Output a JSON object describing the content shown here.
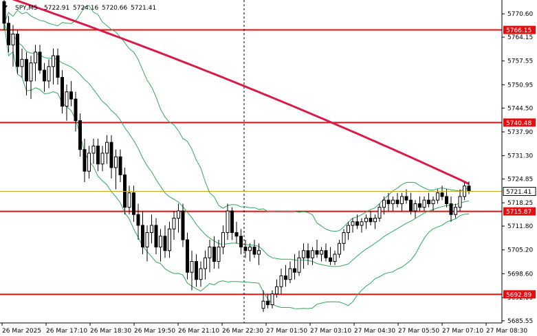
{
  "chart_data": {
    "type": "candlestick",
    "title": "SPY,M5",
    "ohlc": {
      "open": "5722.91",
      "high": "5724.16",
      "low": "5720.66",
      "close": "5721.41"
    },
    "yticks": [
      5770.6,
      5764.15,
      5757.55,
      5750.95,
      5744.5,
      5737.9,
      5731.3,
      5724.85,
      5718.25,
      5711.8,
      5705.2,
      5698.6,
      5692.0,
      5685.55
    ],
    "ytick_labels": [
      "5770.60",
      "5764.15",
      "5757.55",
      "5750.95",
      "5744.50",
      "5737.90",
      "5731.30",
      "5724.85",
      "5718.25",
      "5711.80",
      "5705.20",
      "5698.60",
      "5692.00",
      "5685.55"
    ],
    "xtick_labels": [
      "26 Mar 2025",
      "26 Mar 17:10",
      "26 Mar 18:30",
      "26 Mar 19:50",
      "26 Mar 21:10",
      "26 Mar 22:30",
      "27 Mar 01:50",
      "27 Mar 03:10",
      "27 Mar 04:30",
      "27 Mar 05:50",
      "27 Mar 07:10",
      "27 Mar 08:30"
    ],
    "price_levels": [
      {
        "value": 5766.15,
        "label": "5766.15"
      },
      {
        "value": 5740.48,
        "label": "5740.48"
      },
      {
        "value": 5715.87,
        "label": "5715.87"
      },
      {
        "value": 5692.89,
        "label": "5692.89"
      }
    ],
    "current_price": {
      "value": 5721.41,
      "label": "5721.41"
    },
    "session_break_index": 54,
    "colors": {
      "candle": "#000000",
      "level": "#e01010",
      "ma": "#d81b48",
      "bands": "#2ea85a",
      "current": "#c9a227",
      "label_bg": "#e01010"
    },
    "candles": [
      [
        5774.0,
        5775.5,
        5766.0,
        5768.0
      ],
      [
        5768.0,
        5770.0,
        5760.0,
        5762.0
      ],
      [
        5762.0,
        5767.5,
        5756.0,
        5765.0
      ],
      [
        5765.0,
        5766.0,
        5754.0,
        5756.0
      ],
      [
        5756.0,
        5761.0,
        5753.0,
        5758.0
      ],
      [
        5758.0,
        5760.0,
        5748.0,
        5752.0
      ],
      [
        5752.0,
        5759.0,
        5747.0,
        5757.0
      ],
      [
        5757.0,
        5762.0,
        5752.0,
        5760.0
      ],
      [
        5760.0,
        5762.0,
        5754.0,
        5755.0
      ],
      [
        5755.0,
        5757.0,
        5749.0,
        5752.0
      ],
      [
        5752.0,
        5758.0,
        5750.0,
        5756.0
      ],
      [
        5756.0,
        5761.0,
        5751.0,
        5759.0
      ],
      [
        5759.0,
        5761.0,
        5751.0,
        5753.0
      ],
      [
        5753.0,
        5755.0,
        5743.0,
        5745.0
      ],
      [
        5745.0,
        5751.0,
        5741.0,
        5749.0
      ],
      [
        5749.0,
        5752.0,
        5745.0,
        5747.0
      ],
      [
        5747.0,
        5749.0,
        5738.0,
        5741.0
      ],
      [
        5741.0,
        5743.0,
        5731.0,
        5733.0
      ],
      [
        5733.0,
        5736.0,
        5724.0,
        5727.0
      ],
      [
        5727.0,
        5734.0,
        5725.0,
        5732.0
      ],
      [
        5732.0,
        5736.0,
        5729.0,
        5734.0
      ],
      [
        5734.0,
        5736.0,
        5727.0,
        5729.0
      ],
      [
        5729.0,
        5734.0,
        5727.0,
        5732.0
      ],
      [
        5732.0,
        5737.0,
        5729.0,
        5735.0
      ],
      [
        5735.0,
        5737.0,
        5725.0,
        5728.0
      ],
      [
        5728.0,
        5733.0,
        5722.0,
        5731.0
      ],
      [
        5731.0,
        5733.0,
        5724.0,
        5726.0
      ],
      [
        5726.0,
        5728.0,
        5715.0,
        5717.0
      ],
      [
        5717.0,
        5723.0,
        5715.0,
        5721.0
      ],
      [
        5721.0,
        5723.0,
        5713.0,
        5715.0
      ],
      [
        5715.0,
        5718.0,
        5708.0,
        5712.0
      ],
      [
        5712.0,
        5716.0,
        5704.0,
        5706.0
      ],
      [
        5706.0,
        5712.0,
        5702.0,
        5710.0
      ],
      [
        5710.0,
        5715.0,
        5707.0,
        5712.0
      ],
      [
        5712.0,
        5714.0,
        5704.0,
        5706.0
      ],
      [
        5706.0,
        5711.0,
        5702.0,
        5709.0
      ],
      [
        5709.0,
        5712.0,
        5703.0,
        5705.0
      ],
      [
        5705.0,
        5713.0,
        5703.0,
        5711.0
      ],
      [
        5711.0,
        5716.0,
        5708.0,
        5714.0
      ],
      [
        5714.0,
        5718.0,
        5710.0,
        5716.0
      ],
      [
        5716.0,
        5718.0,
        5706.0,
        5708.0
      ],
      [
        5708.0,
        5710.0,
        5697.0,
        5699.0
      ],
      [
        5699.0,
        5705.0,
        5694.0,
        5702.0
      ],
      [
        5702.0,
        5704.0,
        5695.0,
        5697.0
      ],
      [
        5697.0,
        5702.0,
        5695.0,
        5700.0
      ],
      [
        5700.0,
        5705.0,
        5697.0,
        5703.0
      ],
      [
        5703.0,
        5708.0,
        5699.0,
        5706.0
      ],
      [
        5706.0,
        5709.0,
        5700.0,
        5702.0
      ],
      [
        5702.0,
        5708.0,
        5700.0,
        5706.0
      ],
      [
        5706.0,
        5712.0,
        5704.0,
        5710.0
      ],
      [
        5710.0,
        5718.0,
        5708.0,
        5716.0
      ],
      [
        5716.0,
        5717.0,
        5708.0,
        5710.0
      ],
      [
        5710.0,
        5713.0,
        5707.0,
        5709.0
      ],
      [
        5709.0,
        5711.0,
        5704.0,
        5706.0
      ],
      [
        5706.0,
        5708.0,
        5703.0,
        5705.0
      ],
      [
        5705.0,
        5707.0,
        5702.0,
        5706.0
      ],
      [
        5706.0,
        5708.0,
        5703.0,
        5704.0
      ],
      [
        5704.0,
        5707.0,
        5701.0,
        5705.0
      ],
      [
        5689.0,
        5694.0,
        5688.0,
        5691.0
      ],
      [
        5691.0,
        5693.0,
        5689.0,
        5690.0
      ],
      [
        5690.0,
        5694.0,
        5689.0,
        5693.0
      ],
      [
        5693.0,
        5697.0,
        5692.0,
        5695.0
      ],
      [
        5695.0,
        5700.0,
        5693.0,
        5698.0
      ],
      [
        5698.0,
        5701.0,
        5695.0,
        5697.0
      ],
      [
        5697.0,
        5702.0,
        5696.0,
        5700.0
      ],
      [
        5700.0,
        5704.0,
        5697.0,
        5699.0
      ],
      [
        5699.0,
        5705.0,
        5698.0,
        5703.0
      ],
      [
        5703.0,
        5707.0,
        5700.0,
        5705.0
      ],
      [
        5705.0,
        5707.0,
        5701.0,
        5703.0
      ],
      [
        5703.0,
        5706.0,
        5701.0,
        5705.0
      ],
      [
        5705.0,
        5708.0,
        5703.0,
        5704.0
      ],
      [
        5704.0,
        5706.0,
        5702.0,
        5705.0
      ],
      [
        5705.0,
        5707.0,
        5702.0,
        5703.0
      ],
      [
        5703.0,
        5706.0,
        5701.0,
        5702.0
      ],
      [
        5702.0,
        5705.0,
        5701.0,
        5704.0
      ],
      [
        5704.0,
        5708.0,
        5703.0,
        5707.0
      ],
      [
        5707.0,
        5711.0,
        5705.0,
        5710.0
      ],
      [
        5710.0,
        5713.0,
        5708.0,
        5712.0
      ],
      [
        5712.0,
        5714.0,
        5710.0,
        5713.0
      ],
      [
        5713.0,
        5715.0,
        5711.0,
        5712.0
      ],
      [
        5712.0,
        5714.0,
        5710.0,
        5713.0
      ],
      [
        5713.0,
        5715.0,
        5711.0,
        5714.0
      ],
      [
        5714.0,
        5716.0,
        5712.0,
        5713.0
      ],
      [
        5713.0,
        5715.0,
        5711.0,
        5714.0
      ],
      [
        5714.0,
        5718.0,
        5713.0,
        5717.0
      ],
      [
        5717.0,
        5720.0,
        5715.0,
        5719.0
      ],
      [
        5719.0,
        5721.0,
        5716.0,
        5718.0
      ],
      [
        5718.0,
        5720.0,
        5716.0,
        5719.0
      ],
      [
        5719.0,
        5721.0,
        5717.0,
        5718.0
      ],
      [
        5718.0,
        5721.0,
        5716.0,
        5720.0
      ],
      [
        5720.0,
        5722.0,
        5718.0,
        5719.0
      ],
      [
        5719.0,
        5721.0,
        5715.0,
        5716.0
      ],
      [
        5716.0,
        5719.0,
        5714.0,
        5718.0
      ],
      [
        5718.0,
        5720.0,
        5716.0,
        5717.0
      ],
      [
        5717.0,
        5720.0,
        5716.0,
        5719.0
      ],
      [
        5719.0,
        5721.0,
        5717.0,
        5718.0
      ],
      [
        5718.0,
        5720.0,
        5716.0,
        5719.0
      ],
      [
        5719.0,
        5722.0,
        5718.0,
        5721.0
      ],
      [
        5721.0,
        5723.0,
        5719.0,
        5720.0
      ],
      [
        5720.0,
        5722.0,
        5717.0,
        5718.0
      ],
      [
        5718.0,
        5720.0,
        5713.0,
        5715.0
      ],
      [
        5715.0,
        5718.0,
        5714.0,
        5717.0
      ],
      [
        5717.0,
        5722.0,
        5716.0,
        5720.0
      ],
      [
        5720.0,
        5724.0,
        5719.0,
        5722.9
      ],
      [
        5722.9,
        5724.16,
        5720.66,
        5721.41
      ]
    ]
  }
}
